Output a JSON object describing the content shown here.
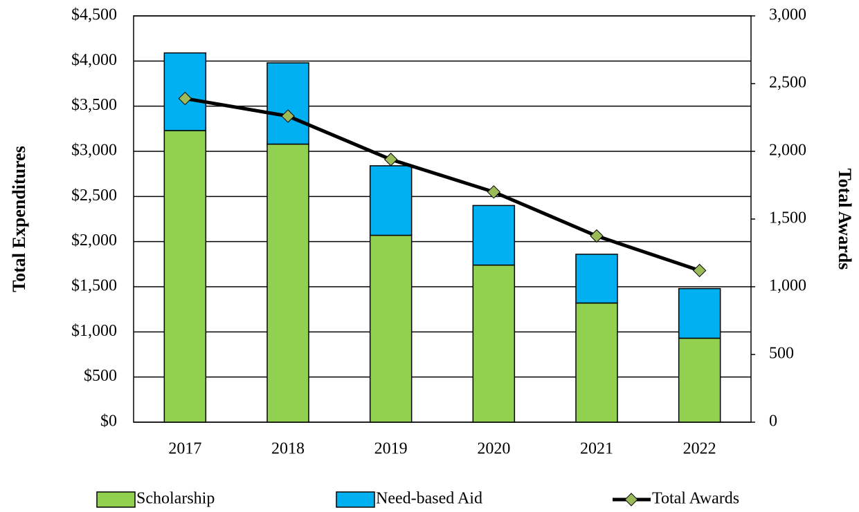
{
  "chart_data": {
    "type": "bar-line",
    "categories": [
      "2017",
      "2018",
      "2019",
      "2020",
      "2021",
      "2022"
    ],
    "y_label": "Total Expenditures",
    "y2_label": "Total Awards",
    "series": [
      {
        "name": "Scholarship",
        "type": "bar",
        "color": "#92d050",
        "values": [
          3230,
          3080,
          2070,
          1740,
          1320,
          930
        ]
      },
      {
        "name": "Need-based Aid",
        "type": "bar",
        "color": "#00b0f0",
        "values": [
          860,
          900,
          770,
          660,
          540,
          550
        ]
      },
      {
        "name": "Total Awards",
        "type": "line",
        "axis": "y2",
        "color": "#000000",
        "marker_color": "#9bbb59",
        "values": [
          2390,
          2260,
          1940,
          1700,
          1375,
          1120
        ]
      }
    ],
    "stacked": true,
    "ylim": [
      0,
      4500
    ],
    "yticks": [
      {
        "value": 0,
        "label": "$0"
      },
      {
        "value": 500,
        "label": "$500"
      },
      {
        "value": 1000,
        "label": "$1,000"
      },
      {
        "value": 1500,
        "label": "$1,500"
      },
      {
        "value": 2000,
        "label": "$2,000"
      },
      {
        "value": 2500,
        "label": "$2,500"
      },
      {
        "value": 3000,
        "label": "$3,000"
      },
      {
        "value": 3500,
        "label": "$3,500"
      },
      {
        "value": 4000,
        "label": "$4,000"
      },
      {
        "value": 4500,
        "label": "$4,500"
      }
    ],
    "y2lim": [
      0,
      3000
    ],
    "y2ticks": [
      0,
      500,
      {
        "value": 1000,
        "label": "1,000"
      },
      {
        "value": 1500,
        "label": "1,500"
      },
      {
        "value": 2000,
        "label": "2,000"
      },
      {
        "value": 2500,
        "label": "2,500"
      },
      {
        "value": 3000,
        "label": "3,000"
      }
    ],
    "grid": true,
    "legend": "bottom"
  }
}
